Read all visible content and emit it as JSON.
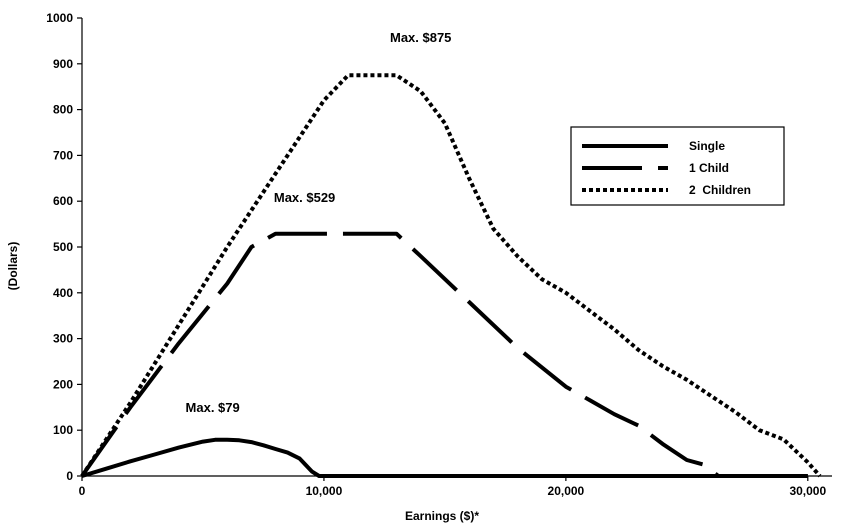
{
  "chart_data": {
    "type": "line",
    "xlabel": "Earnings ($)*",
    "ylabel": "(Dollars)",
    "xlim": [
      0,
      31000
    ],
    "ylim": [
      0,
      1000
    ],
    "x_ticks": [
      0,
      10000,
      20000,
      30000
    ],
    "x_tick_labels": [
      "0",
      "10,000",
      "20,000",
      "30,000"
    ],
    "y_ticks": [
      0,
      100,
      200,
      300,
      400,
      500,
      600,
      700,
      800,
      900,
      1000
    ],
    "y_tick_labels": [
      "0",
      "100",
      "200",
      "300",
      "400",
      "500",
      "600",
      "700",
      "800",
      "900",
      "1000"
    ],
    "grid": false,
    "legend_position": "right",
    "series": [
      {
        "name": "Single",
        "style": "solid",
        "x": [
          0,
          1000,
          2000,
          3000,
          4000,
          5000,
          5500,
          6000,
          6500,
          7000,
          7500,
          8000,
          8500,
          9000,
          9500,
          9800,
          10000,
          15000,
          20000,
          25000,
          30000
        ],
        "y": [
          0,
          16,
          32,
          47,
          62,
          75,
          79,
          79,
          78,
          74,
          67,
          59,
          51,
          38,
          10,
          0,
          0,
          0,
          0,
          0,
          0
        ]
      },
      {
        "name": "1 Child",
        "style": "long-dash",
        "x": [
          0,
          2000,
          4000,
          6000,
          7000,
          8000,
          10000,
          12000,
          13000,
          14000,
          16000,
          18000,
          20000,
          21000,
          22000,
          23000,
          24000,
          25000,
          25700,
          26300,
          27000,
          28000,
          30000
        ],
        "y": [
          0,
          150,
          290,
          420,
          500,
          529,
          529,
          529,
          529,
          480,
          380,
          280,
          195,
          165,
          135,
          110,
          70,
          35,
          25,
          0,
          0,
          0,
          0
        ]
      },
      {
        "name": "2  Children",
        "style": "dotted",
        "x": [
          0,
          2000,
          4000,
          6000,
          8000,
          10000,
          11000,
          12000,
          13000,
          14000,
          15000,
          16000,
          17000,
          18000,
          19000,
          20000,
          21000,
          22000,
          23000,
          24000,
          25000,
          26000,
          27000,
          28000,
          29000,
          30000,
          30500
        ],
        "y": [
          0,
          160,
          330,
          500,
          660,
          820,
          875,
          875,
          875,
          840,
          770,
          650,
          540,
          480,
          430,
          400,
          360,
          320,
          275,
          240,
          210,
          175,
          140,
          100,
          80,
          30,
          0
        ]
      }
    ],
    "annotations": [
      {
        "text": "Max. $875",
        "x": 14000,
        "y": 948
      },
      {
        "text": "Max. $529",
        "x": 9200,
        "y": 598
      },
      {
        "text": "Max. $79",
        "x": 5400,
        "y": 140
      }
    ]
  },
  "colors": {
    "line": "#000000",
    "background": "#ffffff"
  }
}
